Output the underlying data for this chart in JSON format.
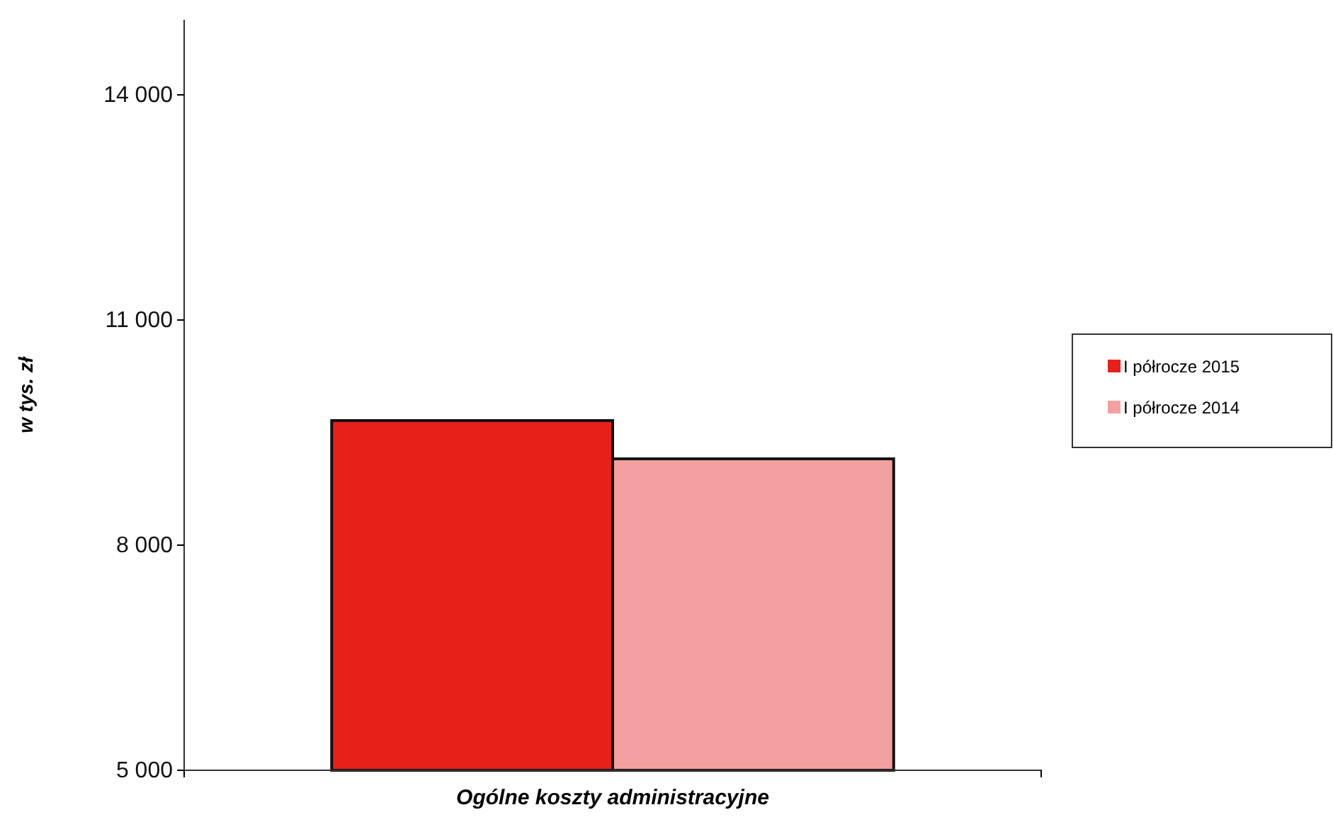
{
  "chart_data": {
    "type": "bar",
    "ylabel": "w tys. zł",
    "categories": [
      "Ogólne koszty administracyjne"
    ],
    "series": [
      {
        "name": "I półrocze 2015",
        "color": "#e8201a",
        "values": [
          9660
        ]
      },
      {
        "name": "I półrocze 2014",
        "color": "#f4a0a0",
        "values": [
          9150
        ]
      }
    ],
    "ylim": [
      5000,
      15000
    ],
    "yticks": [
      {
        "value": 5000,
        "label": "5 000"
      },
      {
        "value": 8000,
        "label": "8 000"
      },
      {
        "value": 11000,
        "label": "11 000"
      },
      {
        "value": 14000,
        "label": "14 000"
      }
    ],
    "grid": false,
    "legend": "right"
  }
}
